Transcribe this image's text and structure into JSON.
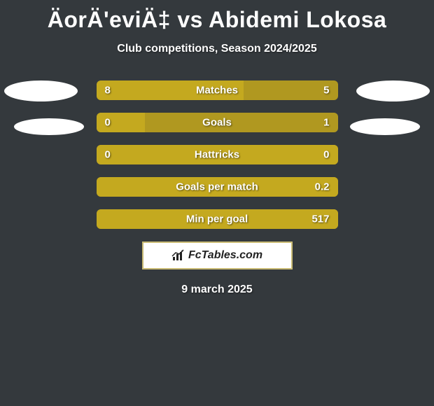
{
  "header": {
    "title": "ÄorÄ'eviÄ‡ vs Abidemi Lokosa",
    "subtitle": "Club competitions, Season 2024/2025"
  },
  "colors": {
    "background": "#34393d",
    "bar_base": "#b09820",
    "bar_fill": "#c4a91f",
    "text": "#ffffff",
    "brand_border": "#c9bb74",
    "brand_bg": "#ffffff"
  },
  "stats": {
    "rows": [
      {
        "label": "Matches",
        "left": "8",
        "right": "5",
        "fill_pct": 61
      },
      {
        "label": "Goals",
        "left": "0",
        "right": "1",
        "fill_pct": 20
      },
      {
        "label": "Hattricks",
        "left": "0",
        "right": "0",
        "fill_pct": 100
      },
      {
        "label": "Goals per match",
        "left": "",
        "right": "0.2",
        "fill_pct": 100
      },
      {
        "label": "Min per goal",
        "left": "",
        "right": "517",
        "fill_pct": 100
      }
    ]
  },
  "brand": {
    "text": "FcTables.com",
    "icon": "bar-chart-icon"
  },
  "footer": {
    "date": "9 march 2025"
  }
}
